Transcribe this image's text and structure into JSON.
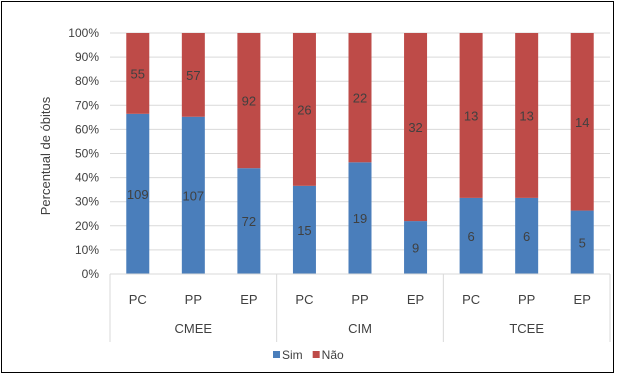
{
  "chart_data": {
    "type": "bar",
    "stacked": "percent",
    "ylabel": "Percentual de óbitos",
    "ylim": [
      0,
      100
    ],
    "y_ticks": [
      "0%",
      "10%",
      "20%",
      "30%",
      "40%",
      "50%",
      "60%",
      "70%",
      "80%",
      "90%",
      "100%"
    ],
    "grid": true,
    "legend_position": "bottom",
    "groups": [
      {
        "label": "CMEE",
        "categories": [
          "PC",
          "PP",
          "EP"
        ]
      },
      {
        "label": "CIM",
        "categories": [
          "PC",
          "PP",
          "EP"
        ]
      },
      {
        "label": "TCEE",
        "categories": [
          "PC",
          "PP",
          "EP"
        ]
      }
    ],
    "series": [
      {
        "name": "Sim",
        "color": "#4a7ebb",
        "values": [
          109,
          107,
          72,
          15,
          19,
          9,
          6,
          6,
          5
        ]
      },
      {
        "name": "Não",
        "color": "#be4b48",
        "values": [
          55,
          57,
          92,
          26,
          22,
          32,
          13,
          13,
          14
        ]
      }
    ]
  }
}
